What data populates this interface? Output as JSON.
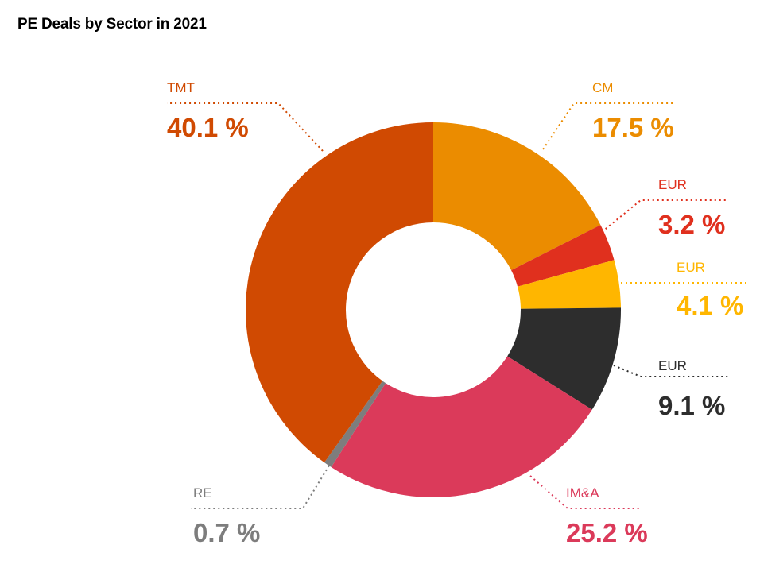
{
  "chart_data": {
    "type": "pie",
    "title": "PE Deals by Sector in 2021",
    "value_suffix": " %",
    "slices": [
      {
        "label": "CM",
        "value": 17.5,
        "color": "#EB8C00"
      },
      {
        "label": "EUR",
        "value": 3.2,
        "color": "#E0301E"
      },
      {
        "label": "EUR",
        "value": 4.1,
        "color": "#FFB600"
      },
      {
        "label": "EUR",
        "value": 9.1,
        "color": "#2D2D2D"
      },
      {
        "label": "IM&A",
        "value": 25.2,
        "color": "#DB3A5A"
      },
      {
        "label": "RE",
        "value": 0.7,
        "color": "#7D7D7D"
      },
      {
        "label": "TMT",
        "value": 40.1,
        "color": "#D04A02"
      }
    ]
  }
}
